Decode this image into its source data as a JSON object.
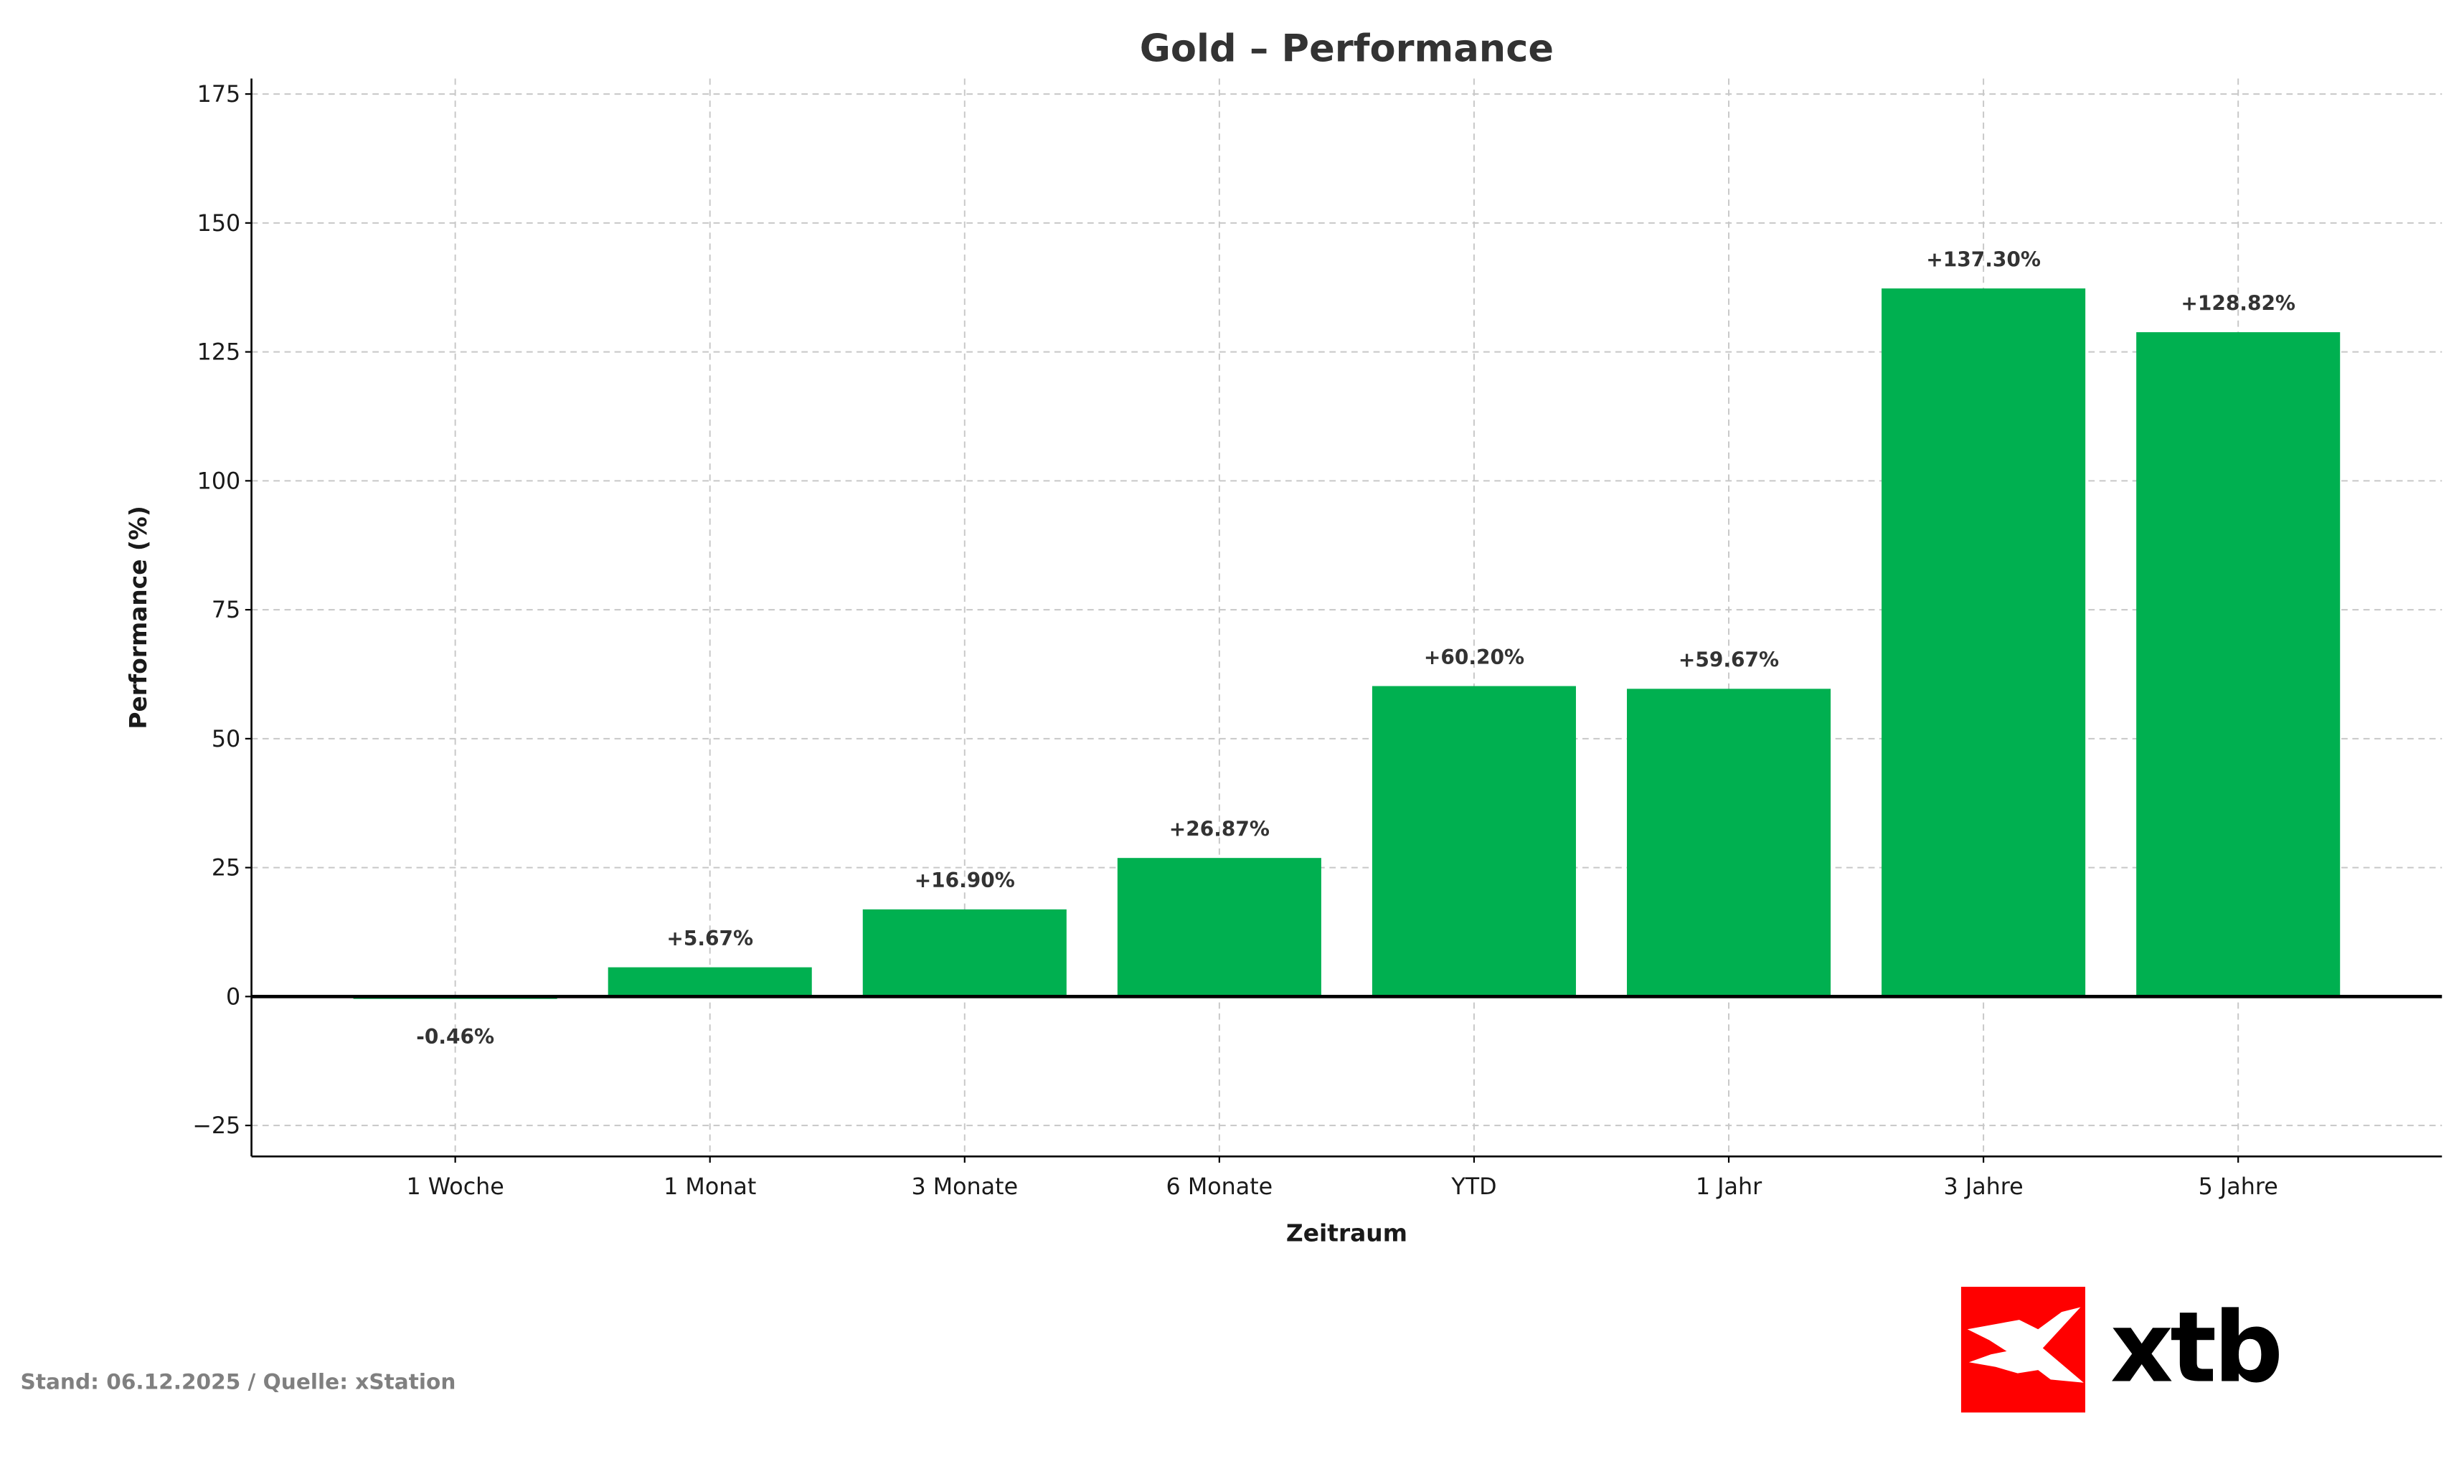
{
  "chart_data": {
    "type": "bar",
    "title": "Gold – Performance",
    "xlabel": "Zeitraum",
    "ylabel": "Performance (%)",
    "categories": [
      "1 Woche",
      "1 Monat",
      "3 Monate",
      "6 Monate",
      "YTD",
      "1 Jahr",
      "3 Jahre",
      "5 Jahre"
    ],
    "values": [
      -0.46,
      5.67,
      16.9,
      26.87,
      60.2,
      59.67,
      137.3,
      128.82
    ],
    "data_labels": [
      "-0.46%",
      "+5.67%",
      "+16.90%",
      "+26.87%",
      "+60.20%",
      "+59.67%",
      "+137.30%",
      "+128.82%"
    ],
    "ylim": [
      -31,
      178
    ],
    "yticks": [
      -25,
      0,
      25,
      50,
      75,
      100,
      125,
      150,
      175
    ],
    "ytick_labels": [
      "−25",
      "0",
      "25",
      "50",
      "75",
      "100",
      "125",
      "150",
      "175"
    ],
    "grid": true,
    "bar_color": "#00B050",
    "zero_line_color": "#000000"
  },
  "footer": {
    "source": "Stand: 06.12.2025 / Quelle: xStation"
  },
  "logo": {
    "text": "xtb",
    "color": "#FF0000"
  }
}
